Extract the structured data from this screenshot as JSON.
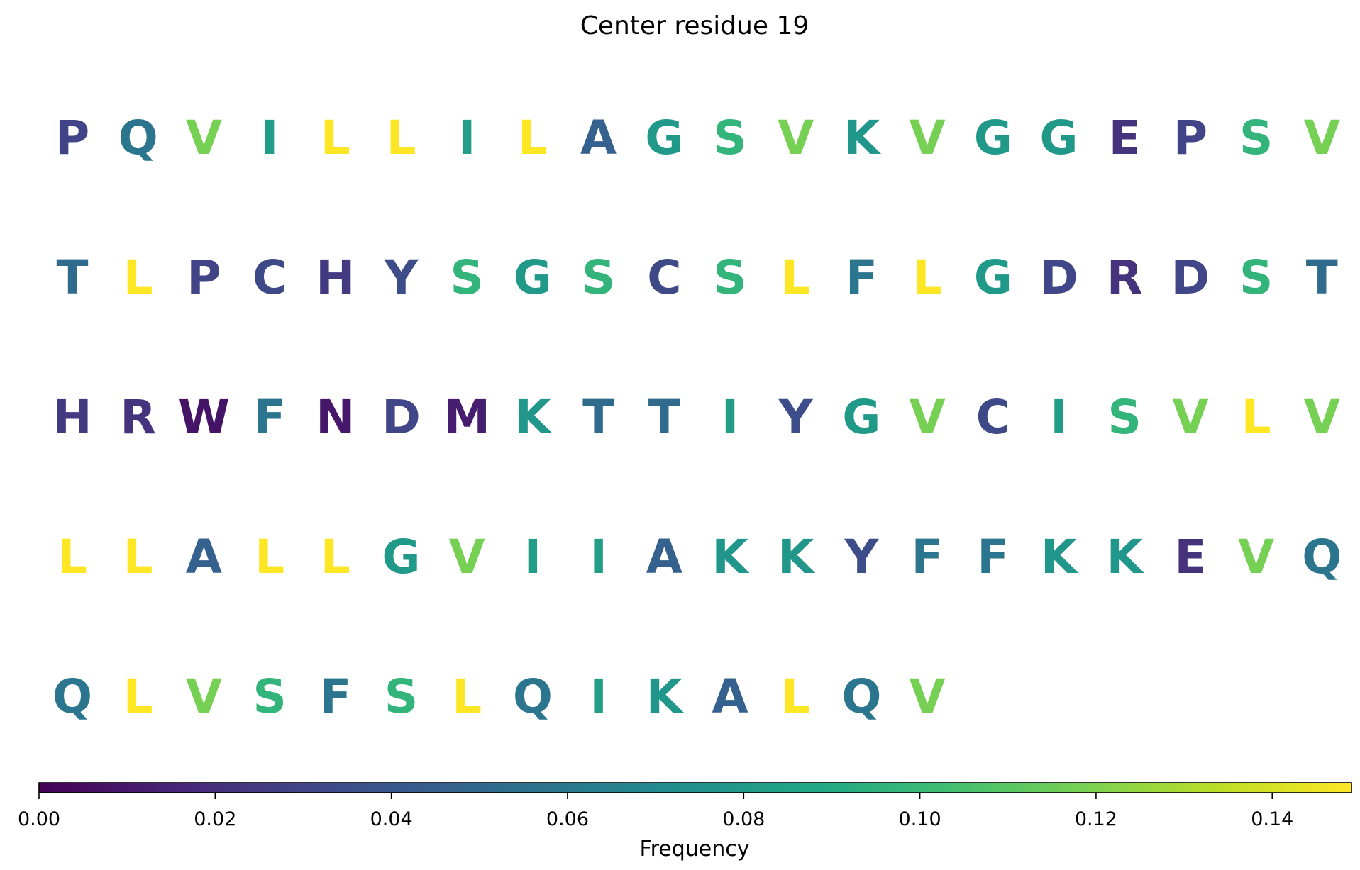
{
  "chart_data": {
    "type": "heatmap",
    "title": "Center residue 19",
    "rows": [
      {
        "residues": [
          "P",
          "Q",
          "V",
          "I",
          "L",
          "L",
          "I",
          "L",
          "A",
          "G",
          "S",
          "V",
          "K",
          "V",
          "G",
          "G",
          "E",
          "P",
          "S",
          "V"
        ]
      },
      {
        "residues": [
          "T",
          "L",
          "P",
          "C",
          "H",
          "Y",
          "S",
          "G",
          "S",
          "C",
          "S",
          "L",
          "F",
          "L",
          "G",
          "D",
          "R",
          "D",
          "S",
          "T"
        ]
      },
      {
        "residues": [
          "H",
          "R",
          "W",
          "F",
          "N",
          "D",
          "M",
          "K",
          "T",
          "T",
          "I",
          "Y",
          "G",
          "V",
          "C",
          "I",
          "S",
          "V",
          "L",
          "V"
        ]
      },
      {
        "residues": [
          "L",
          "L",
          "A",
          "L",
          "L",
          "G",
          "V",
          "I",
          "I",
          "A",
          "K",
          "K",
          "Y",
          "F",
          "F",
          "K",
          "K",
          "E",
          "V",
          "Q"
        ]
      },
      {
        "residues": [
          "Q",
          "L",
          "V",
          "S",
          "F",
          "S",
          "L",
          "Q",
          "I",
          "K",
          "A",
          "L",
          "Q",
          "V"
        ]
      }
    ],
    "frequencies": {
      "L": 0.149,
      "V": 0.118,
      "S": 0.097,
      "I": 0.082,
      "G": 0.08,
      "K": 0.078,
      "F": 0.058,
      "Q": 0.058,
      "T": 0.052,
      "A": 0.046,
      "Y": 0.035,
      "C": 0.033,
      "D": 0.031,
      "P": 0.03,
      "H": 0.025,
      "E": 0.022,
      "R": 0.022,
      "M": 0.012,
      "N": 0.01,
      "W": 0.008
    },
    "colorbar": {
      "label": "Frequency",
      "range": [
        0,
        0.149
      ],
      "ticks": [
        0,
        0.02,
        0.04,
        0.06,
        0.08,
        0.1,
        0.12,
        0.14
      ],
      "tick_labels": [
        "0.00",
        "0.02",
        "0.04",
        "0.06",
        "0.08",
        "0.10",
        "0.12",
        "0.14"
      ],
      "colormap": "viridis",
      "orientation": "horizontal",
      "placement": "bottom"
    }
  }
}
